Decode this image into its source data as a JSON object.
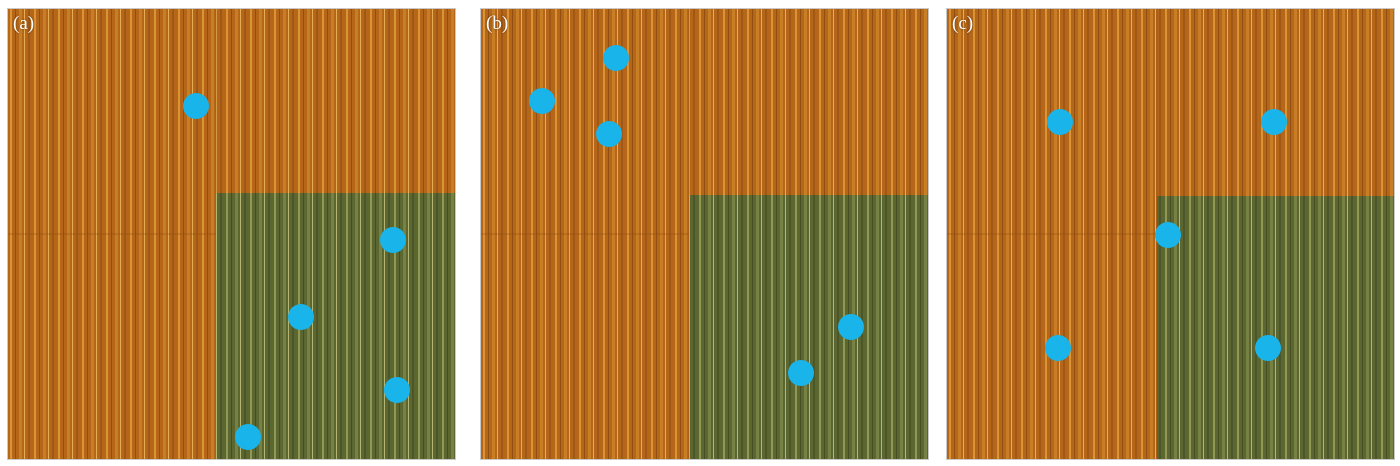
{
  "colors": {
    "dot": "#18b4ea",
    "wood_orange": "#b9681c",
    "wood_green": "#5c6a31"
  },
  "panels": [
    {
      "id": "a",
      "label": "(a)"
    },
    {
      "id": "b",
      "label": "(b)"
    },
    {
      "id": "c",
      "label": "(c)"
    }
  ]
}
